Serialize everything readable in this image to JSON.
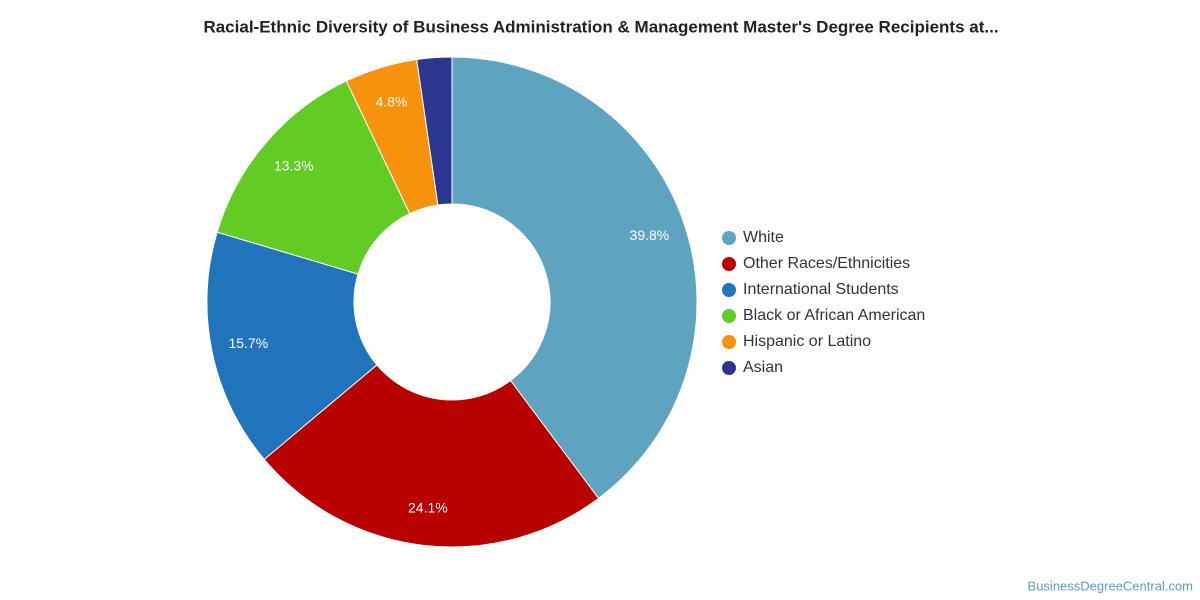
{
  "chart_data": {
    "type": "donut",
    "title": "Racial-Ethnic Diversity of Business Administration & Management Master's Degree Recipients at...",
    "categories": [
      "White",
      "Other Races/Ethnicities",
      "International Students",
      "Black or African American",
      "Hispanic or Latino",
      "Asian"
    ],
    "values": [
      39.8,
      24.1,
      15.7,
      13.3,
      4.8,
      2.3
    ],
    "value_labels": [
      "39.8%",
      "24.1%",
      "15.7%",
      "13.3%",
      "4.8%",
      null
    ],
    "colors": [
      "#5ea3c0",
      "#b80000",
      "#1f74bb",
      "#62cc25",
      "#f7920c",
      "#2c3590"
    ],
    "legend": "right",
    "source": "BusinessDegreeCentral.com"
  }
}
